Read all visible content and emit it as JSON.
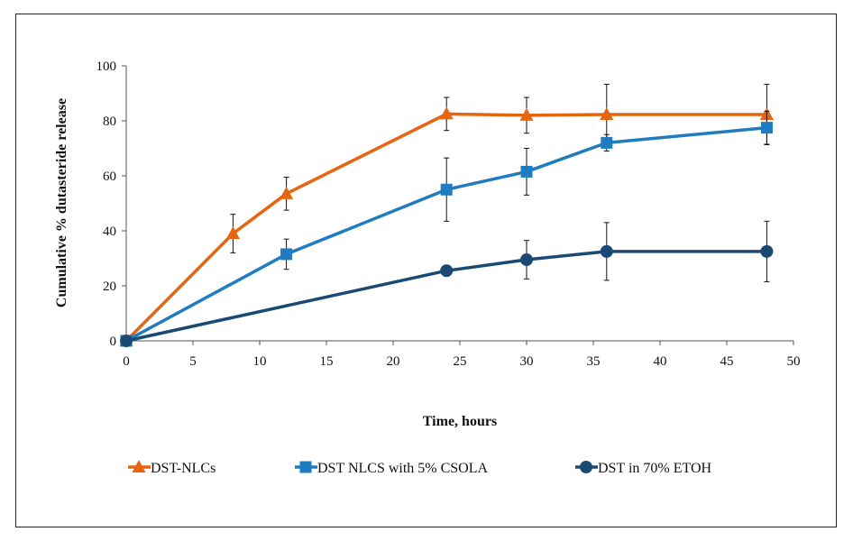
{
  "chart_data": {
    "type": "line",
    "title": "",
    "xlabel": "Time, hours",
    "ylabel": "Cumulative % dutasteride release",
    "xlim": [
      0,
      50
    ],
    "ylim": [
      0,
      100
    ],
    "x_ticks": [
      0,
      5,
      10,
      15,
      20,
      25,
      30,
      35,
      40,
      45,
      50
    ],
    "y_ticks": [
      0,
      20,
      40,
      60,
      80,
      100
    ],
    "grid": false,
    "legend_position": "bottom",
    "series": [
      {
        "name": "DST-NLCs",
        "color": "#E8650F",
        "marker": "triangle",
        "x": [
          0,
          8,
          12,
          24,
          30,
          36,
          48
        ],
        "y": [
          0,
          39,
          53.5,
          82.5,
          82,
          82.3,
          82.3
        ],
        "error": [
          0,
          7,
          6,
          6,
          6.5,
          11,
          11
        ]
      },
      {
        "name": "DST NLCS with 5% CSOLA",
        "color": "#1F7CC0",
        "marker": "square",
        "x": [
          0,
          12,
          24,
          30,
          36,
          48
        ],
        "y": [
          0,
          31.5,
          55,
          61.5,
          72,
          77.5
        ],
        "error": [
          0,
          5.5,
          11.5,
          8.5,
          3,
          6
        ]
      },
      {
        "name": "DST in 70% ETOH",
        "color": "#1A4A73",
        "marker": "circle",
        "x": [
          0,
          24,
          30,
          36,
          48
        ],
        "y": [
          0,
          25.5,
          29.5,
          32.5,
          32.5
        ],
        "error": [
          0,
          2,
          7,
          10.5,
          11
        ]
      }
    ]
  }
}
